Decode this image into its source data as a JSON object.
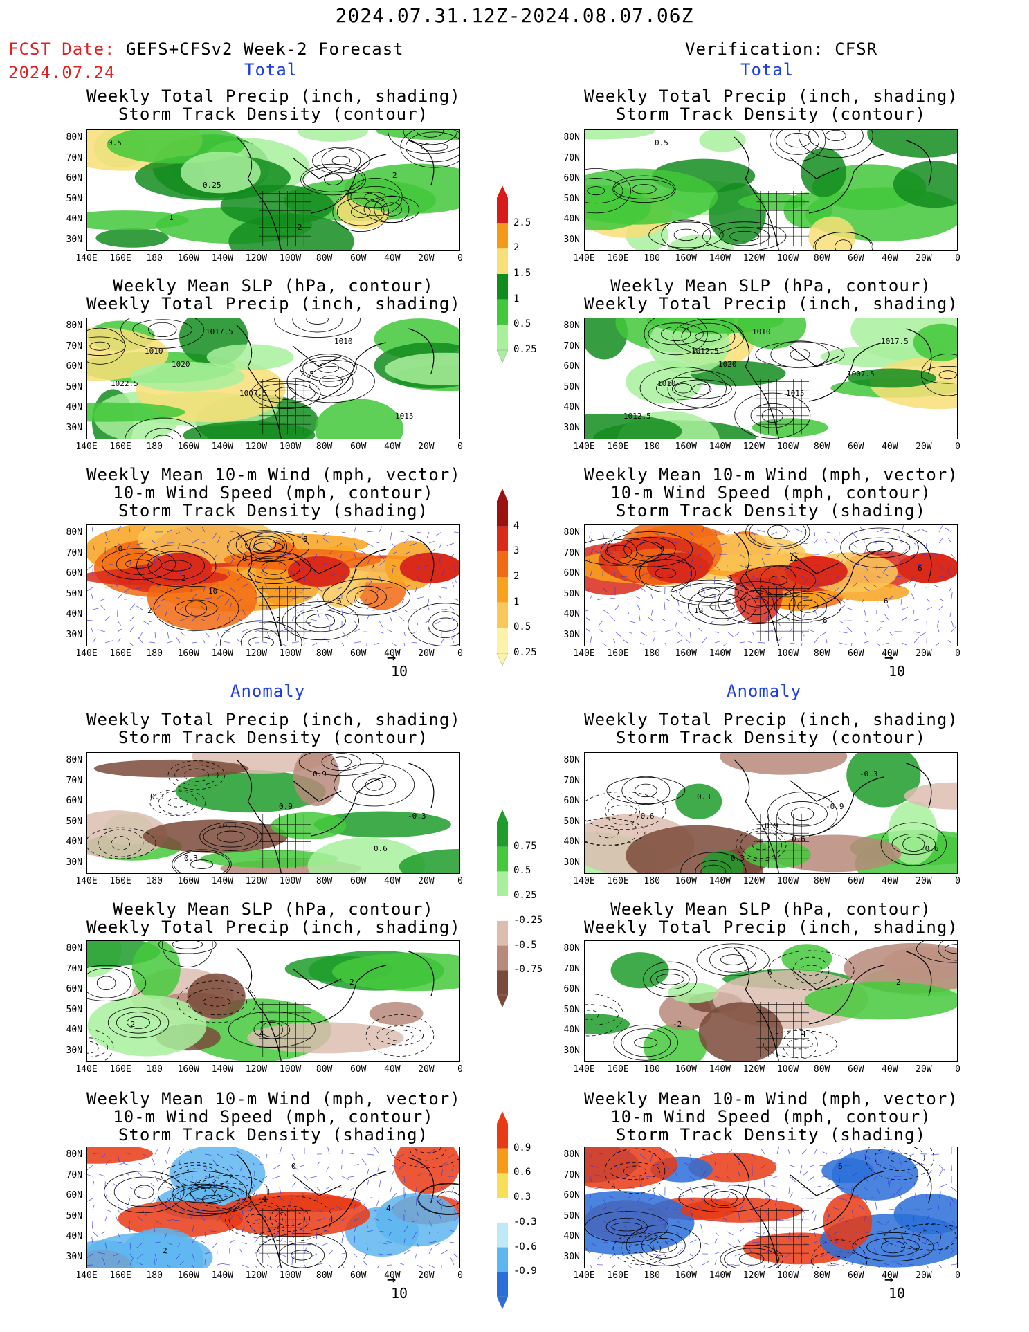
{
  "header": {
    "title": "2024.07.31.12Z-2024.08.07.06Z",
    "fcst_label": "FCST Date:",
    "fcst_model": " GEFS+CFSv2 Week-2 Forecast",
    "fcst_date": "2024.07.24",
    "verification": "Verification: CFSR"
  },
  "sections": {
    "total": "Total",
    "anomaly": "Anomaly"
  },
  "panel_titles": {
    "precip_std": [
      "Weekly Total Precip (inch, shading)",
      "Storm Track Density (contour)"
    ],
    "slp_precip": [
      "Weekly Mean SLP (hPa, contour)",
      "Weekly Total Precip (inch, shading)"
    ],
    "wind": [
      "Weekly Mean 10-m Wind (mph, vector)",
      "10-m Wind Speed (mph, contour)",
      "Storm Track Density (shading)"
    ]
  },
  "axes": {
    "lat_ticks": [
      "80N",
      "70N",
      "60N",
      "50N",
      "40N",
      "30N"
    ],
    "lon_ticks": [
      "140E",
      "160E",
      "180",
      "160W",
      "140W",
      "120W",
      "100W",
      "80W",
      "60W",
      "40W",
      "20W",
      "0"
    ]
  },
  "vector_ref": "10",
  "colorbars": {
    "total_precip": {
      "levels": [
        "2.5",
        "2",
        "1.5",
        "1",
        "0.5",
        "0.25"
      ],
      "colors": [
        "#d81c1c",
        "#f59a18",
        "#f8df78",
        "#138c1e",
        "#42c83a",
        "#a8f09c"
      ]
    },
    "total_std": {
      "levels": [
        "4",
        "3",
        "2",
        "1",
        "0.5",
        "0.25"
      ],
      "colors": [
        "#9c1010",
        "#d92a1a",
        "#f26a12",
        "#f9a21d",
        "#fac85a",
        "#fdf3a8"
      ]
    },
    "anom_precip": {
      "levels": [
        "0.75",
        "0.5",
        "0.25",
        "-0.25",
        "-0.5",
        "-0.75"
      ],
      "colors": [
        "#1f9c2a",
        "#45c93c",
        "#a8f09c",
        "#ffffff",
        "#dcbdb0",
        "#b78a7a",
        "#7a4a3a"
      ]
    },
    "anom_std": {
      "levels": [
        "0.9",
        "0.6",
        "0.3",
        "-0.3",
        "-0.6",
        "-0.9"
      ],
      "colors": [
        "#e83a14",
        "#f79a18",
        "#f8df5a",
        "#ffffff",
        "#bfe8f8",
        "#5eb6f0",
        "#2a6fd8"
      ]
    }
  },
  "contour_labels": {
    "fc_precip": [
      "0.5",
      "0.25",
      "2",
      "2",
      "1"
    ],
    "fc_slp": [
      "1010",
      "1007.5",
      "1010",
      "1022.5",
      "1017.5",
      "2.5",
      "1015",
      "1020"
    ],
    "fc_wind": [
      "2",
      "2",
      "4",
      "2",
      "8",
      "6",
      "10",
      "10",
      "8"
    ],
    "vr_precip": [
      "0.5"
    ],
    "vr_slp": [
      "1012.5",
      "1015",
      "1017.5",
      "1010",
      "1010",
      "1007.5",
      "1012.5",
      "1020"
    ],
    "vr_wind": [
      "6",
      "8",
      "6",
      "18",
      "12",
      "6",
      "9"
    ],
    "fa_precip": [
      "-0.3",
      "0.9",
      "-0.3",
      "0.3",
      "0.9",
      "0.6",
      "0.3"
    ],
    "fa_slp": [
      "-4",
      "2",
      "-2"
    ],
    "fa_wind": [
      "0",
      "4",
      "2",
      "-4"
    ],
    "va_precip": [
      "0.9",
      "-0.3",
      "-0.6",
      "0.3",
      "-0.9",
      "-0.6",
      "0.3",
      "0.6"
    ],
    "va_slp": [
      "4",
      "2",
      "-2",
      "6"
    ],
    "va_wind": [
      "6"
    ]
  }
}
